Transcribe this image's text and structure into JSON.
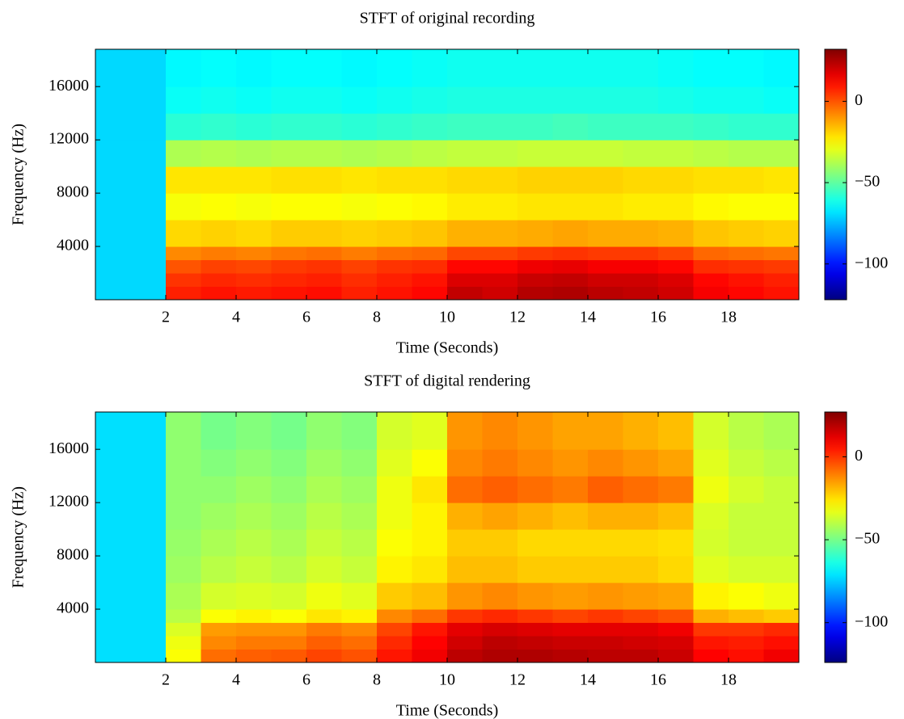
{
  "chart_data": [
    {
      "type": "heatmap",
      "title": "STFT of original recording",
      "xlabel": "Time (Seconds)",
      "ylabel": "Frequency (Hz)",
      "colormap": "jet",
      "x": [
        0,
        1,
        2,
        3,
        4,
        5,
        6,
        7,
        8,
        9,
        10,
        11,
        12,
        13,
        14,
        15,
        16,
        17,
        18,
        19
      ],
      "y": [
        0,
        1000,
        2000,
        3000,
        4000,
        6000,
        8000,
        10000,
        12000,
        14000,
        16000
      ],
      "z": [
        [
          -70,
          -70,
          8,
          10,
          9,
          10,
          11,
          8,
          10,
          12,
          22,
          20,
          24,
          25,
          23,
          22,
          20,
          14,
          12,
          10
        ],
        [
          -70,
          -70,
          5,
          7,
          6,
          7,
          8,
          6,
          8,
          10,
          18,
          18,
          21,
          22,
          20,
          20,
          18,
          12,
          10,
          8
        ],
        [
          -70,
          -70,
          0,
          3,
          2,
          4,
          5,
          3,
          5,
          6,
          12,
          12,
          15,
          16,
          14,
          14,
          12,
          6,
          5,
          4
        ],
        [
          -70,
          -70,
          -8,
          -6,
          -7,
          -5,
          -4,
          -6,
          -4,
          -3,
          2,
          2,
          4,
          5,
          4,
          4,
          2,
          -3,
          -4,
          -5
        ],
        [
          -70,
          -70,
          -20,
          -19,
          -20,
          -18,
          -18,
          -19,
          -18,
          -17,
          -14,
          -14,
          -13,
          -12,
          -13,
          -13,
          -14,
          -17,
          -18,
          -19
        ],
        [
          -70,
          -70,
          -27,
          -26,
          -27,
          -26,
          -26,
          -27,
          -26,
          -25,
          -23,
          -23,
          -22,
          -22,
          -22,
          -23,
          -23,
          -25,
          -26,
          -26
        ],
        [
          -70,
          -70,
          -22,
          -22,
          -22,
          -21,
          -21,
          -22,
          -21,
          -21,
          -20,
          -20,
          -19,
          -19,
          -19,
          -20,
          -20,
          -21,
          -21,
          -22
        ],
        [
          -70,
          -70,
          -38,
          -37,
          -38,
          -37,
          -37,
          -38,
          -37,
          -36,
          -35,
          -35,
          -34,
          -34,
          -34,
          -35,
          -35,
          -36,
          -37,
          -37
        ],
        [
          -70,
          -70,
          -58,
          -57,
          -58,
          -57,
          -57,
          -58,
          -57,
          -56,
          -55,
          -55,
          -55,
          -54,
          -55,
          -55,
          -55,
          -56,
          -57,
          -57
        ],
        [
          -70,
          -70,
          -63,
          -62,
          -63,
          -62,
          -62,
          -63,
          -62,
          -61,
          -60,
          -60,
          -60,
          -60,
          -60,
          -60,
          -61,
          -62,
          -62,
          -63
        ],
        [
          -70,
          -70,
          -65,
          -64,
          -65,
          -64,
          -64,
          -65,
          -64,
          -63,
          -62,
          -62,
          -62,
          -62,
          -62,
          -62,
          -63,
          -64,
          -64,
          -65
        ]
      ],
      "xlim": [
        0,
        20
      ],
      "ylim": [
        0,
        18800
      ],
      "xticks": [
        2,
        4,
        6,
        8,
        10,
        12,
        14,
        16,
        18
      ],
      "yticks": [
        4000,
        8000,
        12000,
        16000
      ],
      "clim": [
        -122,
        32
      ],
      "cticks": [
        {
          "value": -100,
          "label": "−100"
        },
        {
          "value": -50,
          "label": "−50"
        },
        0
      ]
    },
    {
      "type": "heatmap",
      "title": "STFT of digital rendering",
      "xlabel": "Time (Seconds)",
      "ylabel": "Frequency (Hz)",
      "colormap": "jet",
      "x": [
        0,
        1,
        2,
        3,
        4,
        5,
        6,
        7,
        8,
        9,
        10,
        11,
        12,
        13,
        14,
        15,
        16,
        17,
        18,
        19
      ],
      "y": [
        0,
        1000,
        2000,
        3000,
        4000,
        6000,
        8000,
        10000,
        12000,
        14000,
        16000
      ],
      "z": [
        [
          -72,
          -72,
          -30,
          -8,
          -6,
          -5,
          -2,
          -4,
          5,
          10,
          18,
          20,
          20,
          19,
          18,
          18,
          16,
          8,
          6,
          10
        ],
        [
          -72,
          -72,
          -32,
          -12,
          -10,
          -10,
          -6,
          -8,
          2,
          8,
          15,
          18,
          17,
          16,
          16,
          15,
          14,
          5,
          4,
          6
        ],
        [
          -72,
          -72,
          -35,
          -15,
          -14,
          -14,
          -10,
          -12,
          -2,
          5,
          12,
          14,
          13,
          12,
          12,
          12,
          10,
          0,
          0,
          2
        ],
        [
          -72,
          -72,
          -40,
          -30,
          -28,
          -30,
          -26,
          -28,
          -12,
          -8,
          0,
          2,
          0,
          -2,
          0,
          -2,
          -4,
          -18,
          -20,
          -22
        ],
        [
          -72,
          -72,
          -42,
          -36,
          -35,
          -36,
          -32,
          -34,
          -22,
          -20,
          -14,
          -12,
          -14,
          -15,
          -14,
          -15,
          -16,
          -28,
          -30,
          -32
        ],
        [
          -72,
          -72,
          -44,
          -40,
          -38,
          -40,
          -36,
          -38,
          -28,
          -26,
          -20,
          -20,
          -22,
          -22,
          -22,
          -22,
          -24,
          -34,
          -36,
          -36
        ],
        [
          -72,
          -72,
          -45,
          -42,
          -40,
          -42,
          -38,
          -40,
          -30,
          -28,
          -22,
          -22,
          -24,
          -24,
          -24,
          -24,
          -25,
          -36,
          -38,
          -38
        ],
        [
          -72,
          -72,
          -46,
          -44,
          -42,
          -44,
          -40,
          -42,
          -32,
          -28,
          -18,
          -16,
          -18,
          -20,
          -18,
          -18,
          -20,
          -35,
          -38,
          -38
        ],
        [
          -72,
          -72,
          -46,
          -46,
          -44,
          -46,
          -42,
          -44,
          -32,
          -26,
          -8,
          -6,
          -8,
          -10,
          -6,
          -8,
          -10,
          -32,
          -36,
          -38
        ],
        [
          -72,
          -72,
          -46,
          -48,
          -46,
          -48,
          -44,
          -46,
          -34,
          -30,
          -12,
          -10,
          -12,
          -14,
          -12,
          -14,
          -16,
          -34,
          -38,
          -40
        ],
        [
          -72,
          -72,
          -46,
          -50,
          -48,
          -50,
          -46,
          -48,
          -36,
          -34,
          -14,
          -12,
          -14,
          -16,
          -16,
          -18,
          -20,
          -36,
          -40,
          -42
        ]
      ],
      "xlim": [
        0,
        20
      ],
      "ylim": [
        0,
        18800
      ],
      "xticks": [
        2,
        4,
        6,
        8,
        10,
        12,
        14,
        16,
        18
      ],
      "yticks": [
        4000,
        8000,
        12000,
        16000
      ],
      "clim": [
        -124,
        27
      ],
      "cticks": [
        {
          "value": -100,
          "label": "−100"
        },
        {
          "value": -50,
          "label": "−50"
        },
        0
      ]
    }
  ]
}
